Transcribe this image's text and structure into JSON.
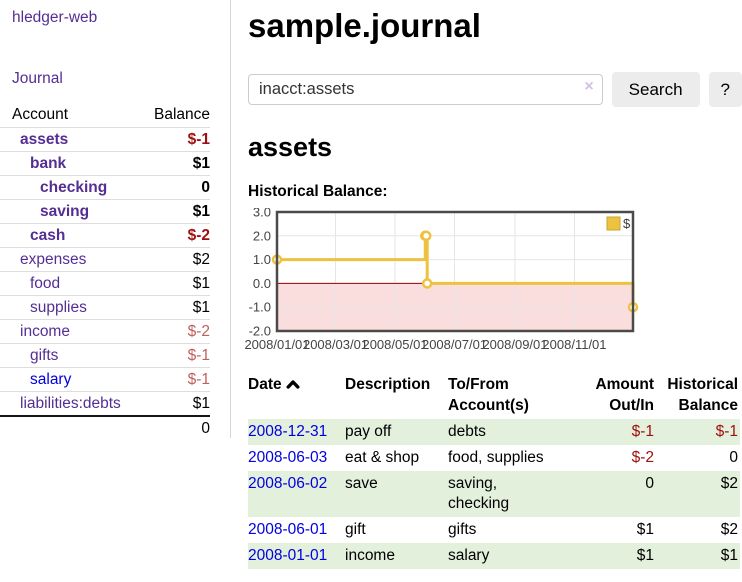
{
  "sidebar": {
    "brand": "hledger-web",
    "journal_link": "Journal",
    "accounts": {
      "col_account": "Account",
      "col_balance": "Balance",
      "rows": [
        {
          "name": "assets",
          "depth": 0,
          "balance": "$-1",
          "bold": true,
          "neg": "strong",
          "link": "purple"
        },
        {
          "name": "bank",
          "depth": 1,
          "balance": "$1",
          "bold": true,
          "neg": "",
          "link": "purple"
        },
        {
          "name": "checking",
          "depth": 2,
          "balance": "0",
          "bold": true,
          "neg": "",
          "link": "purple"
        },
        {
          "name": "saving",
          "depth": 2,
          "balance": "$1",
          "bold": true,
          "neg": "",
          "link": "purple"
        },
        {
          "name": "cash",
          "depth": 1,
          "balance": "$-2",
          "bold": true,
          "neg": "strong",
          "link": "purple"
        },
        {
          "name": "expenses",
          "depth": 0,
          "balance": "$2",
          "bold": false,
          "neg": "",
          "link": "purple"
        },
        {
          "name": "food",
          "depth": 1,
          "balance": "$1",
          "bold": false,
          "neg": "",
          "link": "purple"
        },
        {
          "name": "supplies",
          "depth": 1,
          "balance": "$1",
          "bold": false,
          "neg": "",
          "link": "purple"
        },
        {
          "name": "income",
          "depth": 0,
          "balance": "$-2",
          "bold": false,
          "neg": "dim",
          "link": "purple"
        },
        {
          "name": "gifts",
          "depth": 1,
          "balance": "$-1",
          "bold": false,
          "neg": "dim",
          "link": "purple"
        },
        {
          "name": "salary",
          "depth": 1,
          "balance": "$-1",
          "bold": false,
          "neg": "dim",
          "link": "blue"
        },
        {
          "name": "liabilities:debts",
          "depth": 0,
          "balance": "$1",
          "bold": false,
          "neg": "",
          "link": "purple"
        }
      ],
      "total": "0"
    }
  },
  "main": {
    "title": "sample.journal",
    "search": {
      "value": "inacct:assets",
      "clear_icon": "×",
      "button": "Search",
      "help": "?"
    },
    "heading": "assets",
    "chart_title": "Historical Balance:"
  },
  "chart_data": {
    "type": "line",
    "title": "Historical Balance:",
    "series": [
      {
        "name": "$",
        "color": "#edc240",
        "step": true,
        "points": [
          [
            "2008-01-01",
            1
          ],
          [
            "2008-06-01",
            2
          ],
          [
            "2008-06-02",
            2
          ],
          [
            "2008-06-03",
            0
          ],
          [
            "2008-12-31",
            -1
          ]
        ]
      }
    ],
    "x_ticks": [
      "2008/01/01",
      "2008/03/01",
      "2008/05/01",
      "2008/07/01",
      "2008/09/01",
      "2008/11/01"
    ],
    "y_ticks": [
      3.0,
      2.0,
      1.0,
      0.0,
      -1.0,
      -2.0
    ],
    "xlim": [
      "2008-01-01",
      "2008-12-31"
    ],
    "ylim": [
      -2,
      3
    ],
    "grid": true,
    "legend": {
      "label": "$",
      "position": "top-right"
    },
    "negative_region_color": "#fadddd",
    "zero_line_color": "#990000"
  },
  "register": {
    "headers": {
      "date": "Date",
      "description": "Description",
      "tofrom": "To/From Account(s)",
      "amount": "Amount Out/In",
      "balance": "Historical Balance"
    },
    "rows": [
      {
        "date": "2008-12-31",
        "description": "pay off",
        "accounts": "debts",
        "amount": "$-1",
        "amount_neg": true,
        "balance": "$-1",
        "balance_neg": true
      },
      {
        "date": "2008-06-03",
        "description": "eat & shop",
        "accounts": "food, supplies",
        "amount": "$-2",
        "amount_neg": true,
        "balance": "0",
        "balance_neg": false
      },
      {
        "date": "2008-06-02",
        "description": "save",
        "accounts": "saving,\nchecking",
        "amount": "0",
        "amount_neg": false,
        "balance": "$2",
        "balance_neg": false
      },
      {
        "date": "2008-06-01",
        "description": "gift",
        "accounts": "gifts",
        "amount": "$1",
        "amount_neg": false,
        "balance": "$2",
        "balance_neg": false
      },
      {
        "date": "2008-01-01",
        "description": "income",
        "accounts": "salary",
        "amount": "$1",
        "amount_neg": false,
        "balance": "$1",
        "balance_neg": false
      }
    ]
  },
  "colors": {
    "link_purple": "#552e93",
    "link_blue": "#0000e0",
    "negative": "#9e0f0f",
    "negative_dim": "#c0605c",
    "stripe_green": "#e3f0dc",
    "series_yellow": "#edc240",
    "chart_border": "#4a4a4a"
  }
}
